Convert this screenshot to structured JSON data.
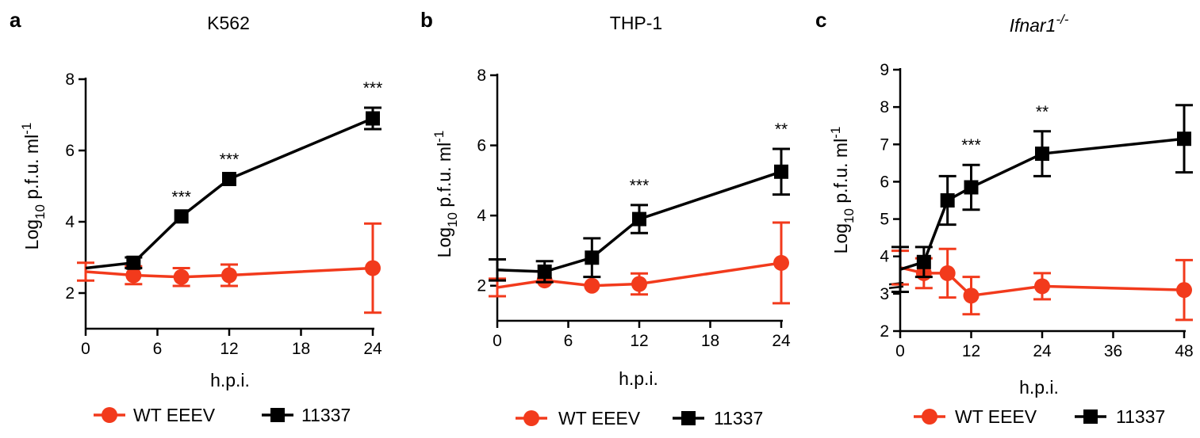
{
  "colors": {
    "wt": "#F23A1C",
    "mutant": "#000000"
  },
  "chart_data": [
    {
      "type": "line",
      "panel": "a",
      "title": "K562",
      "title_italic": false,
      "title_sup": "",
      "xlabel": "h.p.i.",
      "ylabel_main": "Log",
      "ylabel_sub": "10",
      "ylabel_unit": " p.f.u. ml",
      "ylabel_sup": "-1",
      "xlim": [
        0,
        24
      ],
      "ylim": [
        1,
        8
      ],
      "xticks": [
        0,
        6,
        12,
        18,
        24
      ],
      "yticks": [
        2,
        4,
        6,
        8
      ],
      "axis_break": false,
      "series": [
        {
          "name": "WT EEEV",
          "marker": "circle",
          "color_key": "wt",
          "x": [
            0,
            4,
            8,
            12,
            24
          ],
          "y": [
            2.6,
            2.5,
            2.45,
            2.5,
            2.7
          ],
          "err": [
            0.25,
            0.25,
            0.25,
            0.3,
            1.25
          ]
        },
        {
          "name": "11337",
          "marker": "square",
          "color_key": "mutant",
          "x": [
            0,
            4,
            8,
            12,
            24
          ],
          "y": [
            2.7,
            2.85,
            4.15,
            5.2,
            6.9
          ],
          "err": [
            0,
            0.15,
            0,
            0,
            0.3
          ]
        }
      ],
      "annotations": [
        {
          "x": 8,
          "text": "***"
        },
        {
          "x": 12,
          "text": "***"
        },
        {
          "x": 24,
          "text": "***"
        }
      ],
      "legend": [
        "WT EEEV",
        "11337"
      ]
    },
    {
      "type": "line",
      "panel": "b",
      "title": "THP-1",
      "title_italic": false,
      "title_sup": "",
      "xlabel": "h.p.i.",
      "ylabel_main": "Log",
      "ylabel_sub": "10",
      "ylabel_unit": " p.f.u. ml",
      "ylabel_sup": "-1",
      "xlim": [
        0,
        24
      ],
      "ylim": [
        1,
        8
      ],
      "xticks": [
        0,
        6,
        12,
        18,
        24
      ],
      "yticks": [
        2,
        4,
        6,
        8
      ],
      "axis_break": false,
      "series": [
        {
          "name": "WT EEEV",
          "marker": "circle",
          "color_key": "wt",
          "x": [
            0,
            4,
            8,
            12,
            24
          ],
          "y": [
            1.95,
            2.15,
            2.0,
            2.05,
            2.65
          ],
          "err": [
            0.25,
            0,
            0,
            0.3,
            1.15
          ]
        },
        {
          "name": "11337",
          "marker": "square",
          "color_key": "mutant",
          "x": [
            0,
            4,
            8,
            12,
            24
          ],
          "y": [
            2.45,
            2.4,
            2.8,
            3.9,
            5.25
          ],
          "err": [
            0.3,
            0.3,
            0.55,
            0.4,
            0.65
          ]
        }
      ],
      "annotations": [
        {
          "x": 12,
          "text": "***"
        },
        {
          "x": 24,
          "text": "**"
        }
      ],
      "legend": [
        "WT EEEV",
        "11337"
      ]
    },
    {
      "type": "line",
      "panel": "c",
      "title": "Ifnar1",
      "title_italic": true,
      "title_sup": "-/-",
      "xlabel": "h.p.i.",
      "ylabel_main": "Log",
      "ylabel_sub": "10",
      "ylabel_unit": " p.f.u. ml",
      "ylabel_sup": "-1",
      "xlim": [
        0,
        48
      ],
      "ylim": [
        2,
        9
      ],
      "xticks": [
        0,
        12,
        24,
        36,
        48
      ],
      "yticks": [
        2,
        3,
        4,
        5,
        6,
        7,
        8,
        9
      ],
      "axis_break": true,
      "series": [
        {
          "name": "WT EEEV",
          "marker": "circle",
          "color_key": "wt",
          "x": [
            0,
            4,
            8,
            12,
            24,
            48
          ],
          "y": [
            3.7,
            3.55,
            3.55,
            2.95,
            3.2,
            3.1
          ],
          "err": [
            0.45,
            0.4,
            0.65,
            0.5,
            0.35,
            0.8
          ]
        },
        {
          "name": "11337",
          "marker": "square",
          "color_key": "mutant",
          "x": [
            0,
            4,
            8,
            12,
            24,
            48
          ],
          "y": [
            3.65,
            3.85,
            5.5,
            5.85,
            6.75,
            7.15
          ],
          "err": [
            0.6,
            0.4,
            0.65,
            0.6,
            0.6,
            0.9
          ]
        }
      ],
      "annotations": [
        {
          "x": 12,
          "text": "***"
        },
        {
          "x": 24,
          "text": "**"
        }
      ],
      "legend": [
        "WT EEEV",
        "11337"
      ]
    }
  ]
}
